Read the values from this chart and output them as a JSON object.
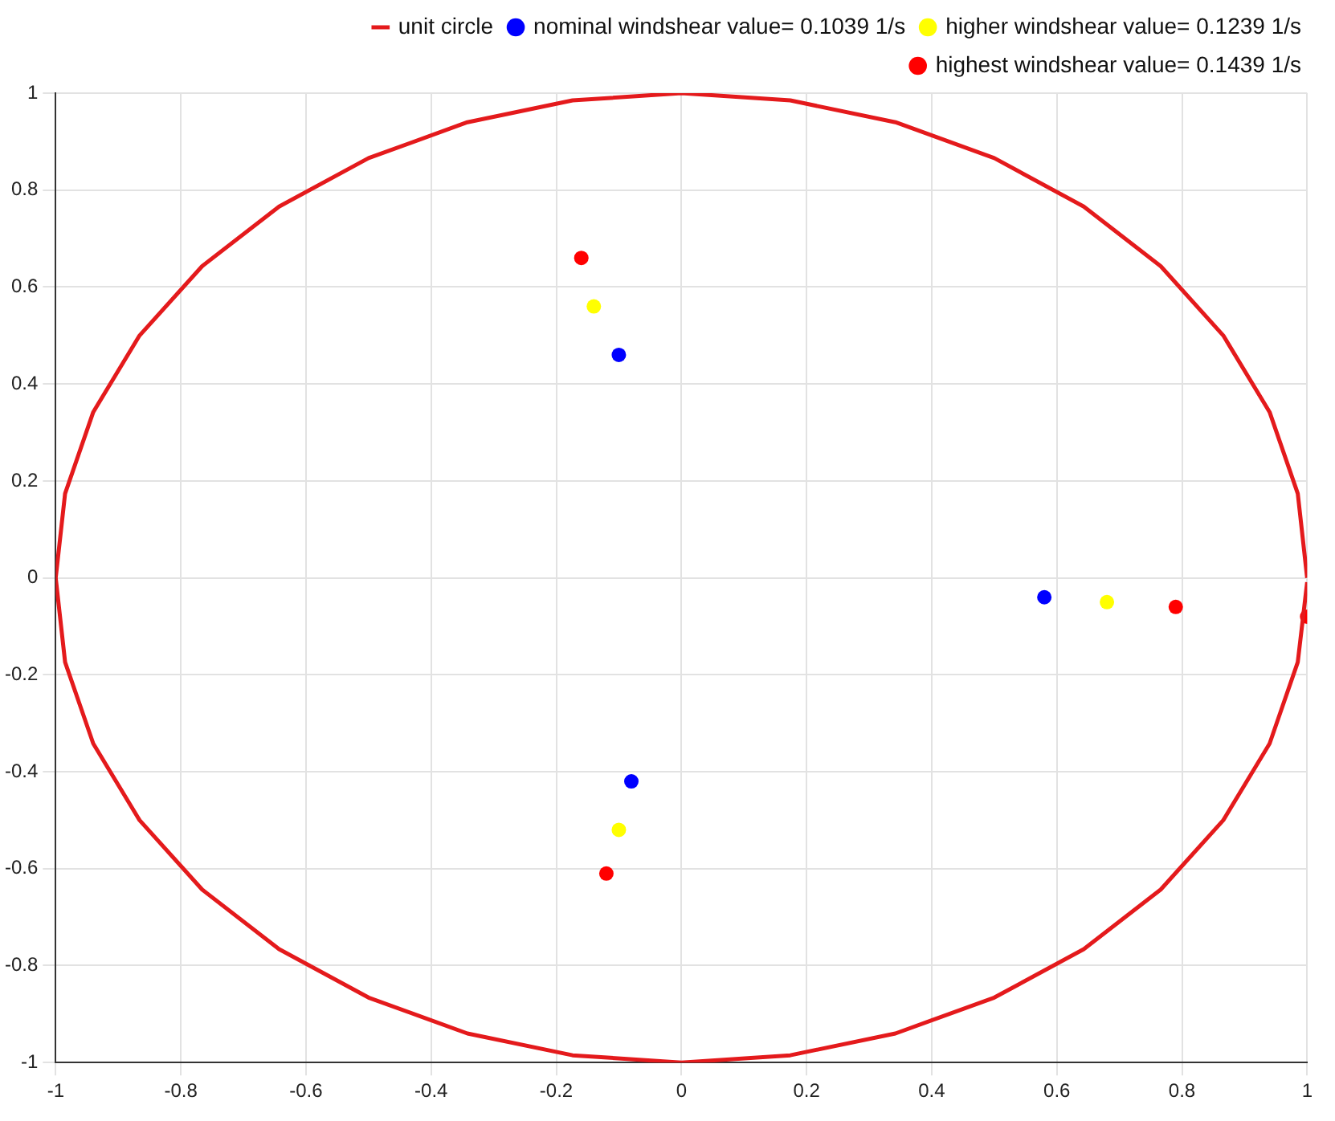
{
  "chart_data": {
    "type": "scatter",
    "xlim": [
      -1,
      1
    ],
    "ylim": [
      -1,
      1
    ],
    "xticks": [
      -1,
      -0.8,
      -0.6,
      -0.4,
      -0.2,
      0,
      0.2,
      0.4,
      0.6,
      0.8,
      1
    ],
    "yticks": [
      -1,
      -0.8,
      -0.6,
      -0.4,
      -0.2,
      0,
      0.2,
      0.4,
      0.6,
      0.8,
      1
    ],
    "grid": true,
    "legend": "top right",
    "series": [
      {
        "name": "unit circle",
        "type": "line",
        "color": "#e41a1c",
        "marker": "none",
        "line_style": "solid",
        "x": [
          1,
          0.985,
          0.94,
          0.866,
          0.766,
          0.643,
          0.5,
          0.342,
          0.174,
          0,
          -0.174,
          -0.342,
          -0.5,
          -0.643,
          -0.766,
          -0.866,
          -0.94,
          -0.985,
          -1,
          -0.985,
          -0.94,
          -0.866,
          -0.766,
          -0.643,
          -0.5,
          -0.342,
          -0.174,
          0,
          0.174,
          0.342,
          0.5,
          0.643,
          0.766,
          0.866,
          0.94,
          0.985,
          1
        ],
        "values": [
          0,
          0.174,
          0.342,
          0.5,
          0.643,
          0.766,
          0.866,
          0.94,
          0.985,
          1,
          0.985,
          0.94,
          0.866,
          0.766,
          0.643,
          0.5,
          0.342,
          0.174,
          0,
          -0.174,
          -0.342,
          -0.5,
          -0.643,
          -0.766,
          -0.866,
          -0.94,
          -0.985,
          -1,
          -0.985,
          -0.94,
          -0.866,
          -0.766,
          -0.643,
          -0.5,
          -0.342,
          -0.174,
          -0.009
        ]
      },
      {
        "name": "nominal windshear value= 0.1039 1/s",
        "color": "#0000ff",
        "marker": "circle",
        "x": [
          -0.1,
          -0.08,
          0.58
        ],
        "values": [
          0.46,
          -0.42,
          -0.04
        ]
      },
      {
        "name": "higher windshear value= 0.1239 1/s",
        "color": "#ffff00",
        "marker": "circle",
        "x": [
          -0.14,
          -0.1,
          0.68
        ],
        "values": [
          0.56,
          -0.52,
          -0.05
        ]
      },
      {
        "name": "highest windshear value= 0.1439 1/s",
        "color": "#ff0000",
        "marker": "circle",
        "x": [
          -0.16,
          -0.12,
          0.79,
          1
        ],
        "values": [
          0.66,
          -0.61,
          -0.06,
          -0.08
        ]
      }
    ]
  }
}
